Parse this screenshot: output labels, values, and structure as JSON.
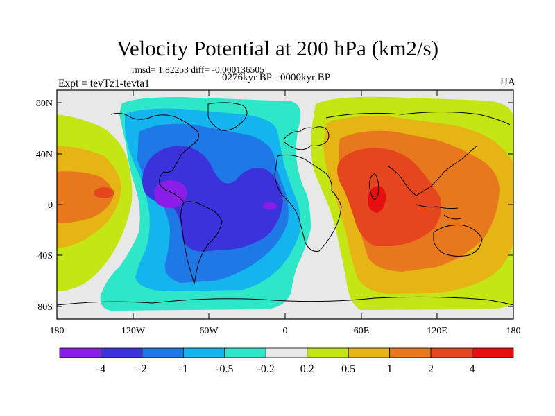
{
  "title": "Velocity Potential at 200 hPa (km2/s)",
  "stats_line": "rmsd= 1.82253 diff= -0.000136505",
  "period_line": "0276kyr BP - 0000kyr BP",
  "experiment_label": "Expt = tevTz1-tevta1",
  "season_label": "JJA",
  "axes": {
    "x_ticks": [
      "180",
      "120W",
      "60W",
      "0",
      "60E",
      "120E",
      "180"
    ],
    "y_ticks": [
      "80N",
      "40N",
      "0",
      "40S",
      "80S"
    ]
  },
  "colorbar": {
    "levels": [
      "-4",
      "-2",
      "-1",
      "-0.5",
      "-0.2",
      "0.2",
      "0.5",
      "1",
      "2",
      "4"
    ],
    "colors": [
      "#8a1ee6",
      "#3c32dc",
      "#1e78e6",
      "#14b4ee",
      "#2ee6c8",
      "#e8e8e8",
      "#c3e614",
      "#e6b414",
      "#e8781e",
      "#e6461e",
      "#e60f0f"
    ]
  }
}
